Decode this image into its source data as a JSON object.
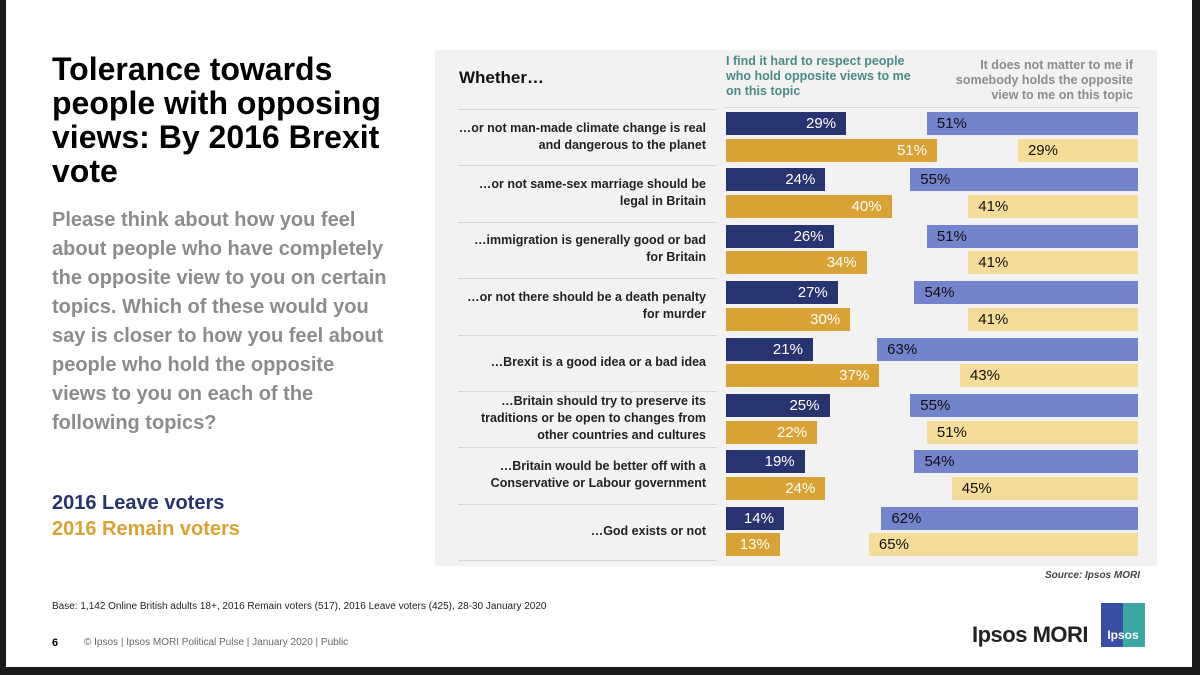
{
  "title": "Tolerance towards people with opposing views: By 2016 Brexit vote",
  "question": "Please think about how you feel about people who have completely the opposite view to you on certain topics. Which of these would you say is closer to how you feel about people who hold the opposite views to you on each of the following topics?",
  "legend": {
    "leave": "2016 Leave voters",
    "remain": "2016 Remain voters"
  },
  "source": "Source: Ipsos MORI",
  "base": "Base: 1,142 Online British adults 18+, 2016 Remain voters (517), 2016 Leave voters (425), 28-30 January 2020",
  "page_number": "6",
  "footer": "© Ipsos | Ipsos MORI Political Pulse | January 2020 | Public",
  "brand": "Ipsos MORI",
  "logo_text": "Ipsos",
  "colors": {
    "leave_hard": "#283470",
    "leave_nomatter": "#7383cc",
    "remain_hard": "#d9a235",
    "remain_nomatter": "#f5dc99"
  },
  "chart_data": {
    "type": "bar",
    "title": "Whether…",
    "series_headers": [
      "I find it hard to respect people who hold opposite views to me on this topic",
      "It does not matter to me if somebody holds the opposite view to me on this topic"
    ],
    "categories": [
      "…or not man-made climate change is real and dangerous to the planet",
      "…or not same-sex marriage should be legal in Britain",
      "…immigration is generally good or bad for Britain",
      "…or not there should be a death penalty for murder",
      "…Brexit is a good idea or a bad idea",
      "…Britain should try to preserve its traditions or be open to changes from other countries and cultures",
      "…Britain would be better off with a Conservative or Labour government",
      "…God exists or not"
    ],
    "series": [
      {
        "name": "2016 Leave voters - hard to respect",
        "values": [
          29,
          24,
          26,
          27,
          21,
          25,
          19,
          14
        ]
      },
      {
        "name": "2016 Leave voters - does not matter",
        "values": [
          51,
          55,
          51,
          54,
          63,
          55,
          54,
          62
        ]
      },
      {
        "name": "2016 Remain voters - hard to respect",
        "values": [
          51,
          40,
          34,
          30,
          37,
          22,
          24,
          13
        ]
      },
      {
        "name": "2016 Remain voters - does not matter",
        "values": [
          29,
          41,
          41,
          41,
          43,
          51,
          45,
          65
        ]
      }
    ],
    "unit": "%"
  }
}
